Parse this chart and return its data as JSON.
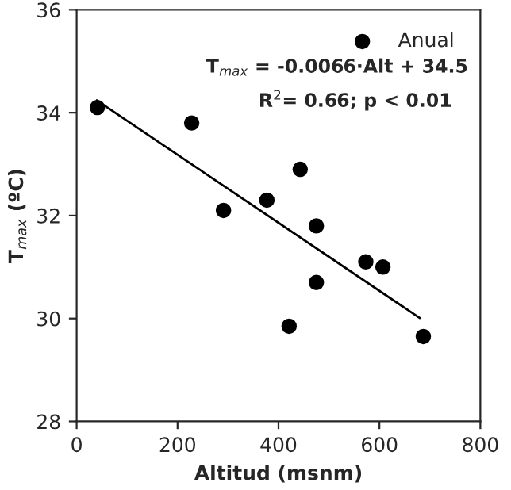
{
  "chart_data": {
    "type": "scatter",
    "xlabel": "Altitud (msnm)",
    "ylabel": "T$_{max}$ (ºC)",
    "xlim": [
      0,
      800
    ],
    "xticks": [
      0,
      200,
      400,
      600,
      800
    ],
    "ylim": [
      28,
      36
    ],
    "yticks": [
      28,
      30,
      32,
      34,
      36
    ],
    "grid": false,
    "legend": "top right",
    "marker": "circle",
    "annotations": [
      "T$_{max}$ = -0.0066·Alt + 34.5",
      "R$^{2}$= 0.66; p < 0.01"
    ],
    "series": [
      {
        "name": "Anual",
        "color": "#000000",
        "x": [
          41,
          228,
          291,
          377,
          443,
          475,
          573,
          607,
          475,
          421,
          687
        ],
        "values": [
          34.1,
          33.8,
          32.1,
          32.3,
          32.9,
          31.8,
          31.1,
          31.0,
          30.7,
          29.85,
          29.65
        ]
      },
      {
        "type": "line",
        "color": "#000000",
        "line_style": "solid",
        "marker": "none",
        "x": [
          40,
          680
        ],
        "values": [
          34.24,
          30.01
        ]
      }
    ]
  }
}
